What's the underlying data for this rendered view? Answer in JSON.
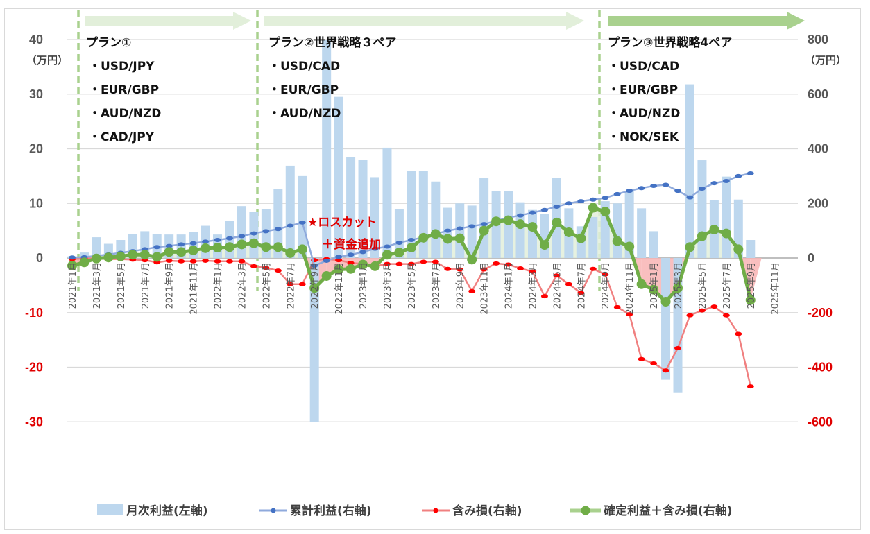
{
  "chart_data": {
    "type": "bar+line",
    "title": "",
    "x": [
      "2021-01",
      "2021-02",
      "2021-03",
      "2021-04",
      "2021-05",
      "2021-06",
      "2021-07",
      "2021-08",
      "2021-09",
      "2021-10",
      "2021-11",
      "2021-12",
      "2022-01",
      "2022-02",
      "2022-03",
      "2022-04",
      "2022-05",
      "2022-06",
      "2022-07",
      "2022-08",
      "2022-09",
      "2022-10",
      "2022-11",
      "2022-12",
      "2023-01",
      "2023-02",
      "2023-03",
      "2023-04",
      "2023-05",
      "2023-06",
      "2023-07",
      "2023-08",
      "2023-09",
      "2023-10",
      "2023-11",
      "2023-12",
      "2024-01",
      "2024-02",
      "2024-03",
      "2024-04",
      "2024-05",
      "2024-06",
      "2024-07",
      "2024-08",
      "2024-09",
      "2024-10",
      "2024-11",
      "2024-12",
      "2025-01",
      "2025-02",
      "2025-03",
      "2025-04",
      "2025-05",
      "2025-06",
      "2025-07",
      "2025-08",
      "2025-09"
    ],
    "x_tick_labels": [
      "2021年1月",
      "2021年3月",
      "2021年5月",
      "2021年7月",
      "2021年9月",
      "2021年11月",
      "2022年1月",
      "2022年3月",
      "2022年5月",
      "2022年7月",
      "2022年9月",
      "2022年11月",
      "2023年1月",
      "2023年3月",
      "2023年5月",
      "2023年7月",
      "2023年9月",
      "2023年11月",
      "2024年1月",
      "2024年3月",
      "2024年5月",
      "2024年7月",
      "2024年9月",
      "2024年11月",
      "2025年1月",
      "2025年3月",
      "2025年5月",
      "2025年7月",
      "2025年9月",
      "2025年11月"
    ],
    "left_axis": {
      "unit": "（万円）",
      "ylim": [
        -30,
        40
      ],
      "ticks": [
        "40",
        "30",
        "20",
        "10",
        "0",
        "-10",
        "-20",
        "-30"
      ]
    },
    "right_axis": {
      "unit": "（万円）",
      "ylim": [
        -600,
        800
      ],
      "ticks": [
        "800",
        "600",
        "400",
        "200",
        "0",
        "-200",
        "-400",
        "-600"
      ]
    },
    "grid": true,
    "legend_position": "bottom",
    "series": [
      {
        "name": "月次利益(左軸)",
        "type": "bar",
        "axis": "left",
        "color": "#bdd7ee",
        "values": [
          0.3,
          1.0,
          3.8,
          2.6,
          3.3,
          4.4,
          4.9,
          4.4,
          4.3,
          4.3,
          4.7,
          5.9,
          4.3,
          6.8,
          9.5,
          8.4,
          8.9,
          12.6,
          16.9,
          15.0,
          -30,
          40,
          29.5,
          18.5,
          18.0,
          14.8,
          20.2,
          9.0,
          16.0,
          16.0,
          14.0,
          9.2,
          10.0,
          9.6,
          14.6,
          12.3,
          12.3,
          10.2,
          8.8,
          8.1,
          14.7,
          9.1,
          5.8,
          7.5,
          10.4,
          10.0,
          12.3,
          9.1,
          4.9,
          -22.3,
          -24.6,
          31.8,
          17.9,
          10.6,
          14.9,
          10.7,
          3.3
        ]
      },
      {
        "name": "累計利益(右軸)",
        "type": "line",
        "axis": "right",
        "color": "#4472c4",
        "values": [
          2,
          3,
          8,
          13,
          19,
          25,
          32,
          40,
          44,
          50,
          54,
          60,
          66,
          72,
          80,
          90,
          98,
          106,
          118,
          130,
          -28,
          -10,
          4,
          12,
          22,
          34,
          42,
          56,
          66,
          76,
          88,
          100,
          108,
          116,
          124,
          136,
          148,
          156,
          166,
          176,
          188,
          200,
          208,
          214,
          220,
          234,
          246,
          256,
          264,
          268,
          246,
          222,
          254,
          274,
          282,
          300,
          310
        ]
      },
      {
        "name": "含み損(右軸)",
        "type": "line",
        "axis": "right",
        "color": "#ff0000",
        "values": [
          -4,
          -2,
          -2,
          -4,
          -4,
          -6,
          -8,
          -16,
          -10,
          -12,
          -12,
          -10,
          -12,
          -12,
          -12,
          -30,
          -36,
          -46,
          -96,
          -96,
          -8,
          -4,
          -8,
          -18,
          -22,
          -30,
          -22,
          -22,
          -22,
          -14,
          -14,
          -40,
          -42,
          -122,
          -42,
          -20,
          -24,
          -38,
          -50,
          -140,
          -64,
          -96,
          -128,
          -40,
          -60,
          -180,
          -206,
          -370,
          -386,
          -412,
          -330,
          -210,
          -192,
          -178,
          -210,
          -278,
          -470
        ]
      },
      {
        "name": "確定利益＋含み損(右軸)",
        "type": "line",
        "axis": "right",
        "color": "#70ad47",
        "values": [
          -28,
          -16,
          -2,
          2,
          6,
          12,
          12,
          4,
          22,
          22,
          28,
          36,
          38,
          40,
          50,
          54,
          40,
          40,
          18,
          32,
          -110,
          -66,
          -42,
          -40,
          -24,
          -30,
          12,
          20,
          38,
          74,
          88,
          70,
          72,
          -6,
          100,
          134,
          138,
          124,
          114,
          48,
          130,
          94,
          72,
          184,
          170,
          62,
          42,
          -96,
          -116,
          -160,
          -110,
          40,
          80,
          104,
          90,
          32,
          -154
        ]
      }
    ],
    "annotations": [
      {
        "text": "プラン①",
        "items": [
          "・USD/JPY",
          "・EUR/GBP",
          "・AUD/NZD",
          "・CAD/JPY"
        ],
        "start": "2021-01"
      },
      {
        "text": "プラン②世界戦略３ペア",
        "items": [
          "・USD/CAD",
          "・EUR/GBP",
          "・AUD/NZD"
        ],
        "start": "2022-04"
      },
      {
        "text": "プラン③世界戦略4ペア",
        "items": [
          "・USD/CAD",
          "・EUR/GBP",
          "・AUD/NZD",
          "・NOK/SEK"
        ],
        "start": "2024-08"
      },
      {
        "text": "★ロスカット",
        "sub": "＋資金追加",
        "at": "2022-09"
      }
    ]
  },
  "legend": [
    {
      "label": "月次利益(左軸)"
    },
    {
      "label": "累計利益(右軸)"
    },
    {
      "label": "含み損(右軸)"
    },
    {
      "label": "確定利益＋含み損(右軸)"
    }
  ]
}
